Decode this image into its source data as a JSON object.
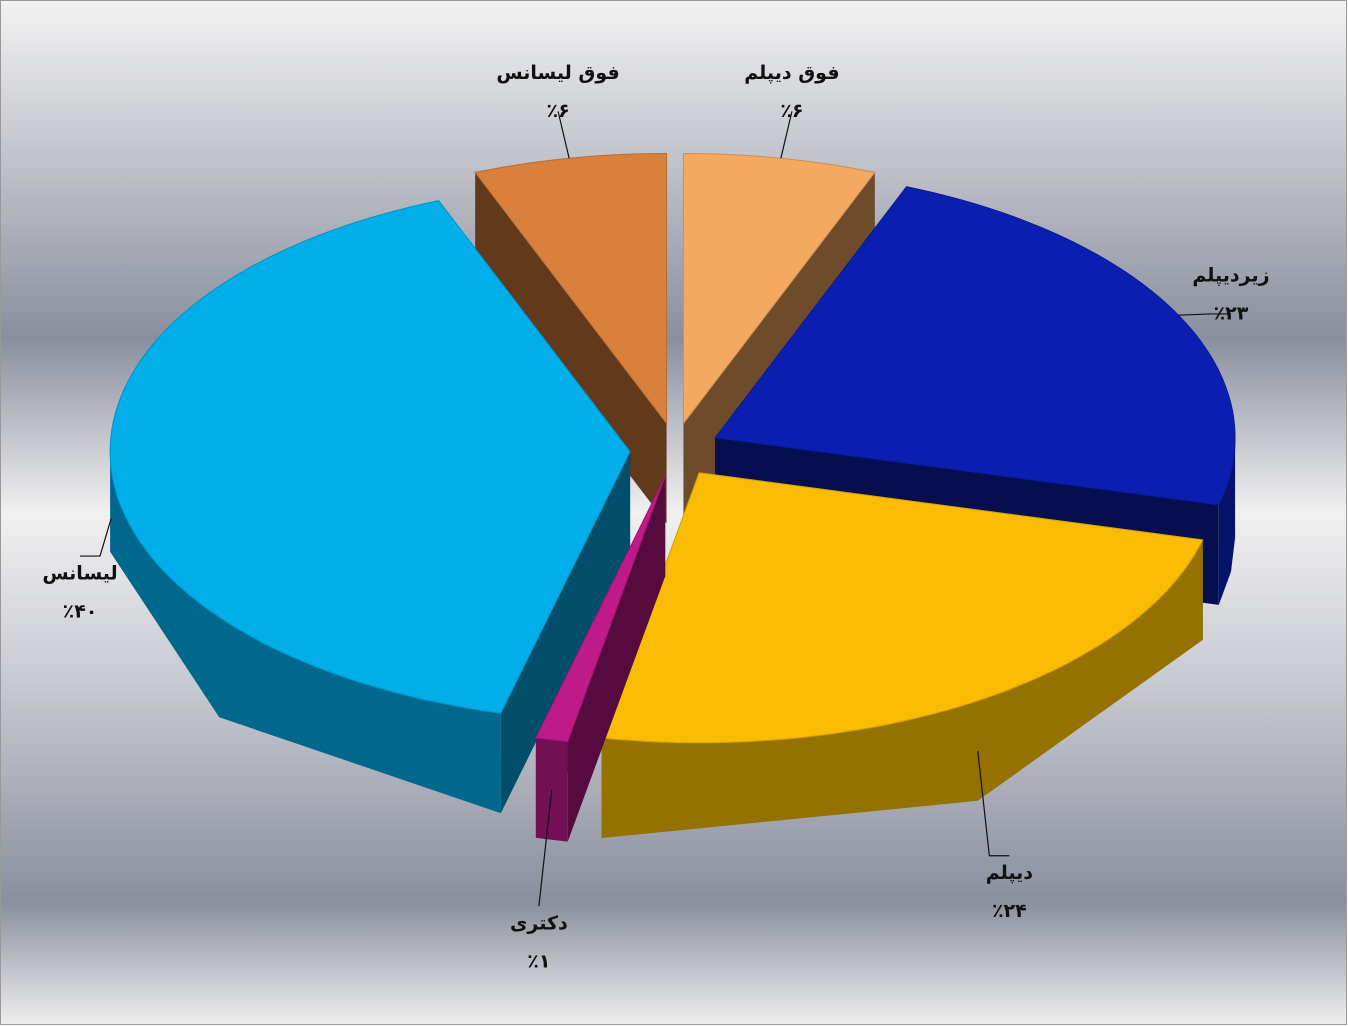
{
  "chart_data": {
    "type": "pie3d",
    "categories": [
      "فوق دیپلم",
      "زیردیپلم",
      "دیپلم",
      "دکتری",
      "لیسانس",
      "فوق لیسانس"
    ],
    "values": [
      6,
      23,
      24,
      1,
      40,
      6
    ],
    "value_labels": [
      "٪۶",
      "٪۲۳",
      "٪۲۴",
      "٪۱",
      "٪۴۰",
      "٪۶"
    ],
    "colors": [
      "#f4a860",
      "#0a1fb0",
      "#f9bc00",
      "#c0198a",
      "#00aeea",
      "#d9803c"
    ]
  }
}
